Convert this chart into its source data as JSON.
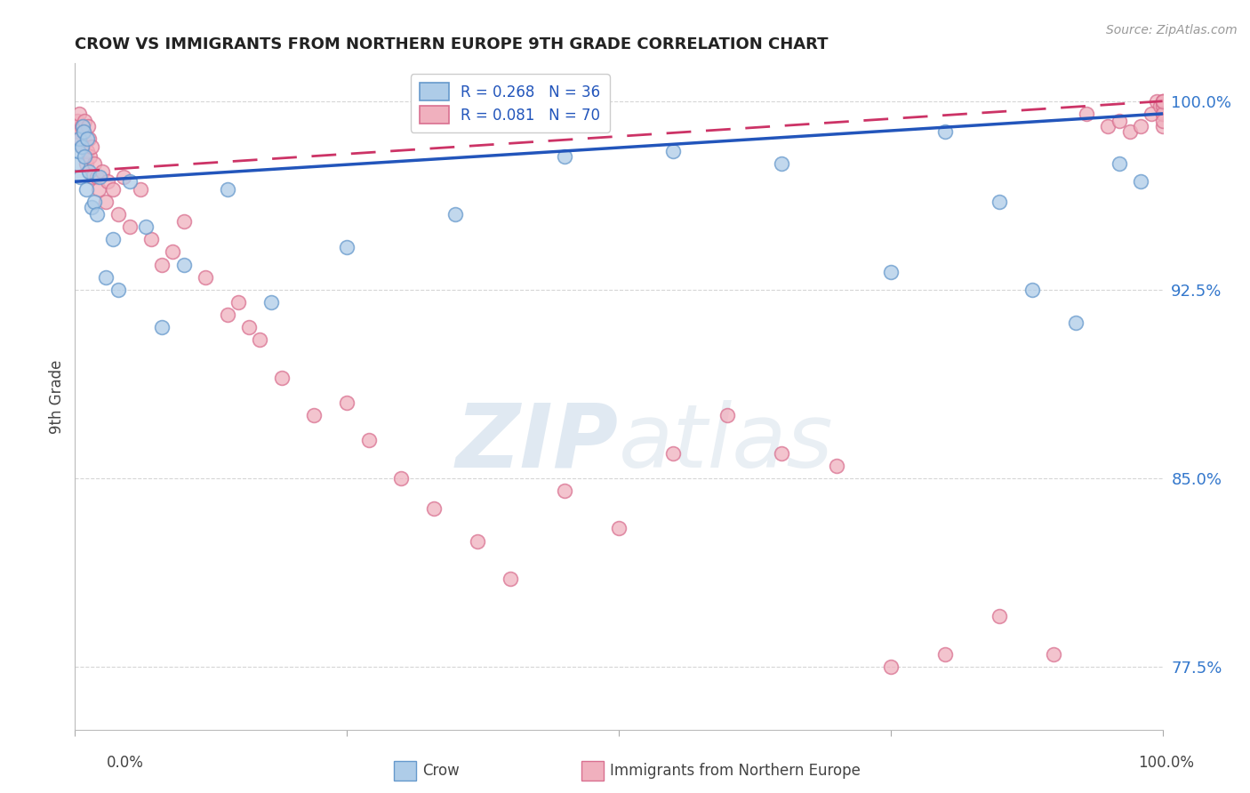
{
  "title": "CROW VS IMMIGRANTS FROM NORTHERN EUROPE 9TH GRADE CORRELATION CHART",
  "source_text": "Source: ZipAtlas.com",
  "ylabel": "9th Grade",
  "xlim": [
    0.0,
    100.0
  ],
  "ylim": [
    75.0,
    101.5
  ],
  "yticks": [
    77.5,
    85.0,
    92.5,
    100.0
  ],
  "ytick_labels": [
    "77.5%",
    "85.0%",
    "92.5%",
    "100.0%"
  ],
  "legend_crow_R": "R = 0.268",
  "legend_crow_N": "N = 36",
  "legend_imm_R": "R = 0.081",
  "legend_imm_N": "N = 70",
  "crow_color": "#aecce8",
  "crow_edge_color": "#6699cc",
  "imm_color": "#f0b0be",
  "imm_edge_color": "#d97090",
  "trend_crow_color": "#2255bb",
  "trend_imm_color": "#cc3366",
  "background_color": "#ffffff",
  "grid_color": "#cccccc",
  "title_color": "#222222",
  "axis_label_color": "#444444",
  "ytick_color": "#3377cc",
  "watermark_color": "#d8e8f4",
  "crow_x": [
    0.2,
    0.3,
    0.4,
    0.5,
    0.6,
    0.7,
    0.8,
    0.9,
    1.0,
    1.1,
    1.3,
    1.5,
    1.8,
    2.0,
    2.3,
    2.8,
    3.5,
    4.0,
    5.0,
    6.5,
    8.0,
    10.0,
    14.0,
    18.0,
    25.0,
    35.0,
    45.0,
    55.0,
    65.0,
    75.0,
    80.0,
    85.0,
    88.0,
    92.0,
    96.0,
    98.0
  ],
  "crow_y": [
    97.5,
    98.0,
    98.5,
    97.0,
    98.2,
    99.0,
    98.8,
    97.8,
    96.5,
    98.5,
    97.2,
    95.8,
    96.0,
    95.5,
    97.0,
    93.0,
    94.5,
    92.5,
    96.8,
    95.0,
    91.0,
    93.5,
    96.5,
    92.0,
    94.2,
    95.5,
    97.8,
    98.0,
    97.5,
    93.2,
    98.8,
    96.0,
    92.5,
    91.2,
    97.5,
    96.8
  ],
  "imm_x": [
    0.1,
    0.2,
    0.3,
    0.4,
    0.5,
    0.6,
    0.7,
    0.8,
    0.9,
    1.0,
    1.1,
    1.2,
    1.3,
    1.4,
    1.5,
    1.6,
    1.8,
    2.0,
    2.2,
    2.5,
    2.8,
    3.0,
    3.5,
    4.0,
    4.5,
    5.0,
    6.0,
    7.0,
    8.0,
    9.0,
    10.0,
    12.0,
    14.0,
    15.0,
    16.0,
    17.0,
    19.0,
    22.0,
    25.0,
    27.0,
    30.0,
    33.0,
    37.0,
    40.0,
    45.0,
    50.0,
    55.0,
    60.0,
    65.0,
    70.0,
    75.0,
    80.0,
    85.0,
    90.0,
    93.0,
    95.0,
    96.0,
    97.0,
    98.0,
    99.0,
    99.5,
    99.8,
    100.0,
    100.0,
    100.0,
    100.0,
    100.0,
    100.0,
    100.0,
    100.0
  ],
  "imm_y": [
    99.0,
    99.2,
    98.8,
    99.5,
    98.5,
    99.0,
    98.2,
    98.8,
    99.2,
    97.5,
    98.0,
    99.0,
    98.5,
    97.8,
    98.2,
    97.0,
    97.5,
    97.0,
    96.5,
    97.2,
    96.0,
    96.8,
    96.5,
    95.5,
    97.0,
    95.0,
    96.5,
    94.5,
    93.5,
    94.0,
    95.2,
    93.0,
    91.5,
    92.0,
    91.0,
    90.5,
    89.0,
    87.5,
    88.0,
    86.5,
    85.0,
    83.8,
    82.5,
    81.0,
    84.5,
    83.0,
    86.0,
    87.5,
    86.0,
    85.5,
    77.5,
    78.0,
    79.5,
    78.0,
    99.5,
    99.0,
    99.2,
    98.8,
    99.0,
    99.5,
    100.0,
    99.8,
    100.0,
    99.5,
    99.8,
    100.0,
    99.0,
    99.5,
    100.0,
    99.2
  ]
}
